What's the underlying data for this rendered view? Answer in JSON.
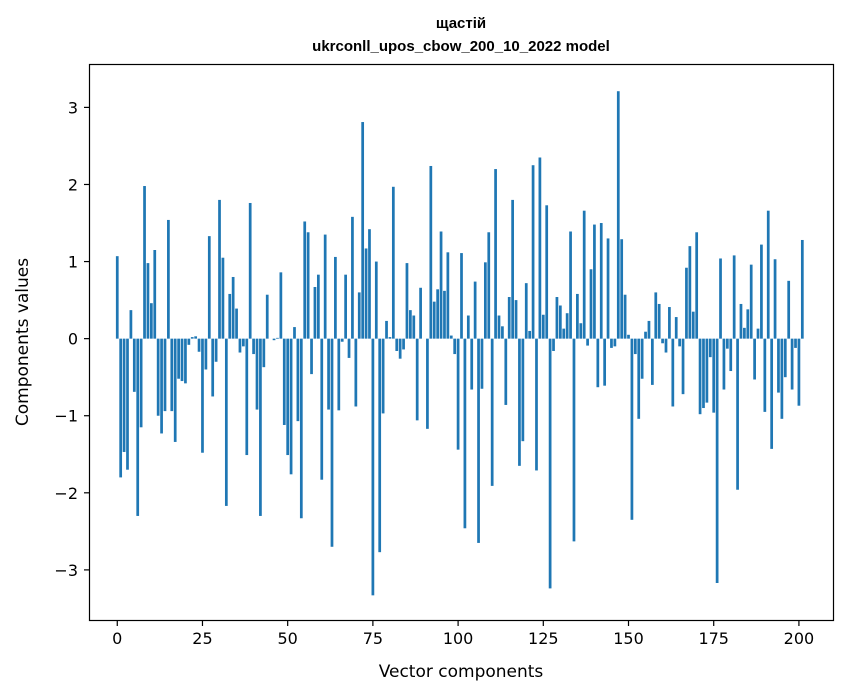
{
  "chart_data": {
    "type": "bar",
    "title": "щастій",
    "subtitle": "ukrconll_upos_cbow_200_10_2022 model",
    "xlabel": "Vector components",
    "ylabel": "Components values",
    "xlim": [
      -8,
      210
    ],
    "ylim": [
      -3.65,
      3.55
    ],
    "xticks": [
      0,
      25,
      50,
      75,
      100,
      125,
      150,
      175,
      200
    ],
    "yticks": [
      -3,
      -2,
      -1,
      0,
      1,
      2,
      3
    ],
    "xtick_labels": [
      "0",
      "25",
      "50",
      "75",
      "100",
      "125",
      "150",
      "175",
      "200"
    ],
    "ytick_labels": [
      "−3",
      "−2",
      "−1",
      "0",
      "1",
      "2",
      "3"
    ],
    "grid": false,
    "bar_color": "#1f77b4",
    "values": [
      1.07,
      -1.8,
      -1.47,
      -1.7,
      0.37,
      -0.69,
      -2.3,
      -1.15,
      1.98,
      0.98,
      0.46,
      1.15,
      -1.0,
      -1.23,
      -0.94,
      1.54,
      -0.94,
      -1.34,
      -0.52,
      -0.55,
      -0.58,
      -0.08,
      0.02,
      0.03,
      -0.17,
      -1.48,
      -0.4,
      1.33,
      -0.75,
      -0.3,
      1.8,
      1.05,
      -2.17,
      0.58,
      0.8,
      0.39,
      -0.18,
      -0.1,
      -1.51,
      1.76,
      -0.2,
      -0.92,
      -2.3,
      -0.37,
      0.57,
      0.0,
      -0.02,
      0.01,
      0.86,
      -1.12,
      -1.51,
      -1.76,
      0.15,
      -1.07,
      -2.33,
      1.52,
      1.38,
      -0.46,
      0.67,
      0.83,
      -1.83,
      1.35,
      -0.92,
      -2.7,
      1.06,
      -0.93,
      -0.04,
      0.83,
      -0.25,
      1.58,
      -0.88,
      0.6,
      2.81,
      1.17,
      1.42,
      -3.33,
      1.0,
      -2.77,
      -0.97,
      0.23,
      0.02,
      1.97,
      -0.16,
      -0.26,
      -0.14,
      0.98,
      0.37,
      0.3,
      -1.06,
      0.66,
      0.0,
      -1.17,
      2.24,
      0.48,
      0.64,
      1.39,
      0.62,
      1.12,
      0.04,
      -0.2,
      -1.44,
      1.11,
      -2.46,
      0.3,
      -0.66,
      0.74,
      -2.65,
      -0.65,
      0.99,
      1.38,
      -1.91,
      2.2,
      0.3,
      0.16,
      -0.86,
      0.54,
      1.8,
      0.5,
      -1.65,
      -1.33,
      0.72,
      0.1,
      2.25,
      -1.71,
      2.35,
      0.31,
      1.73,
      -3.24,
      -0.16,
      0.54,
      0.43,
      0.13,
      0.33,
      1.39,
      -2.63,
      0.58,
      0.2,
      1.66,
      -0.09,
      0.9,
      1.48,
      -0.63,
      1.5,
      -0.61,
      1.3,
      -0.12,
      -0.1,
      3.21,
      1.29,
      0.57,
      0.05,
      -2.35,
      -0.2,
      -1.04,
      -0.52,
      0.09,
      0.23,
      -0.6,
      0.6,
      0.45,
      -0.06,
      -0.18,
      0.41,
      -0.88,
      0.28,
      -0.1,
      -0.72,
      0.92,
      1.2,
      0.35,
      1.38,
      -0.98,
      -0.9,
      -0.83,
      -0.24,
      -0.96,
      -3.17,
      1.04,
      -0.66,
      -0.13,
      -0.42,
      1.08,
      -1.96,
      0.45,
      0.14,
      0.38,
      0.96,
      -0.53,
      0.13,
      1.22,
      -0.95,
      1.66,
      -1.43,
      1.03,
      -0.7,
      -1.04,
      -0.5,
      0.75,
      -0.66,
      -0.12,
      -0.87,
      1.28
    ]
  }
}
